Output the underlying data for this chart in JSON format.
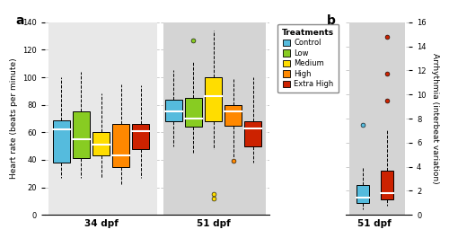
{
  "panel_a": {
    "title": "a",
    "ylabel": "Heart rate (beats per minute)",
    "xlabel_groups": [
      "34 dpf",
      "51 dpf"
    ],
    "ylim": [
      0,
      140
    ],
    "yticks": [
      0,
      20,
      40,
      60,
      80,
      100,
      120,
      140
    ],
    "treatments": [
      "Control",
      "Low",
      "Medium",
      "High",
      "Extra High"
    ],
    "colors": [
      "#55BBDD",
      "#88CC22",
      "#FFDD00",
      "#FF8800",
      "#CC2200"
    ],
    "group34": {
      "Control": {
        "q1": 38,
        "median": 62,
        "q3": 69,
        "whislo": 27,
        "whishi": 100,
        "fliers": []
      },
      "Low": {
        "q1": 41,
        "median": 55,
        "q3": 75,
        "whislo": 27,
        "whishi": 104,
        "fliers": []
      },
      "Medium": {
        "q1": 43,
        "median": 51,
        "q3": 60,
        "whislo": 27,
        "whishi": 88,
        "fliers": []
      },
      "High": {
        "q1": 35,
        "median": 43,
        "q3": 66,
        "whislo": 22,
        "whishi": 95,
        "fliers": []
      },
      "Extra High": {
        "q1": 48,
        "median": 61,
        "q3": 66,
        "whislo": 27,
        "whishi": 94,
        "fliers": []
      }
    },
    "group51": {
      "Control": {
        "q1": 68,
        "median": 75,
        "q3": 84,
        "whislo": 50,
        "whishi": 105,
        "fliers": []
      },
      "Low": {
        "q1": 64,
        "median": 70,
        "q3": 85,
        "whislo": 45,
        "whishi": 112,
        "fliers": [
          127
        ]
      },
      "Medium": {
        "q1": 68,
        "median": 86,
        "q3": 100,
        "whislo": 48,
        "whishi": 134,
        "fliers": [
          12,
          15
        ]
      },
      "High": {
        "q1": 65,
        "median": 75,
        "q3": 80,
        "whislo": 42,
        "whishi": 99,
        "fliers": [
          39
        ]
      },
      "Extra High": {
        "q1": 50,
        "median": 63,
        "q3": 68,
        "whislo": 38,
        "whishi": 100,
        "fliers": []
      }
    },
    "bg34": "#e8e8e8",
    "bg51": "#d4d4d4"
  },
  "panel_b": {
    "title": "b",
    "ylabel": "Arrhythmia (interbeat variation)",
    "xlabel": "51 dpf",
    "ylim": [
      0,
      16
    ],
    "yticks": [
      0,
      2,
      4,
      6,
      8,
      10,
      12,
      14,
      16
    ],
    "treatments": [
      "Control",
      "Extra High"
    ],
    "colors": [
      "#55BBDD",
      "#CC2200"
    ],
    "group51": {
      "Control": {
        "q1": 1.0,
        "median": 1.4,
        "q3": 2.5,
        "whislo": 0.5,
        "whishi": 4.0,
        "fliers": [
          7.5
        ]
      },
      "Extra High": {
        "q1": 1.3,
        "median": 1.8,
        "q3": 3.7,
        "whislo": 0.8,
        "whishi": 7.0,
        "fliers": [
          9.5,
          11.7,
          14.8
        ]
      }
    },
    "bg": "#d4d4d4"
  },
  "legend": {
    "labels": [
      "Control",
      "Low",
      "Medium",
      "High",
      "Extra High"
    ],
    "colors": [
      "#55BBDD",
      "#88CC22",
      "#FFDD00",
      "#FF8800",
      "#CC2200"
    ],
    "title": "Treatments"
  }
}
